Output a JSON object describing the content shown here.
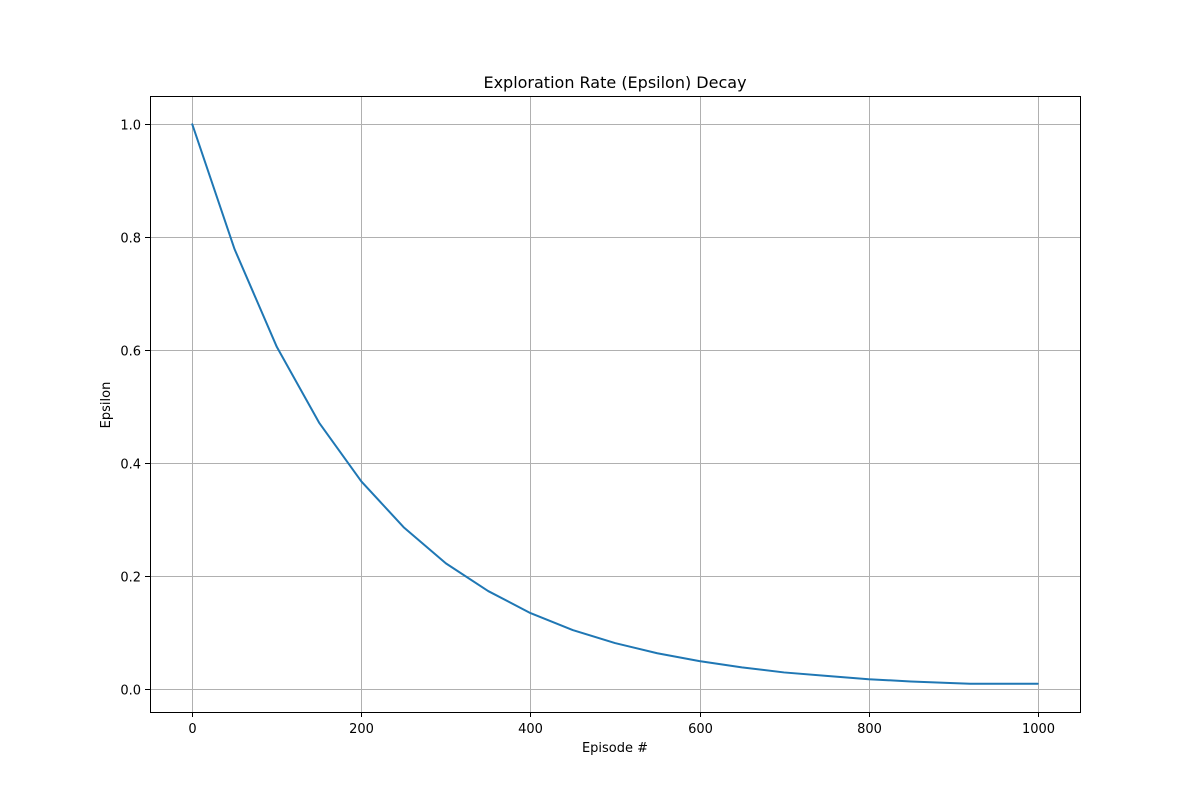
{
  "chart_data": {
    "type": "line",
    "title": "Exploration Rate (Epsilon) Decay",
    "xlabel": "Episode #",
    "ylabel": "Epsilon",
    "xlim": [
      -50,
      1050
    ],
    "ylim": [
      -0.04,
      1.05
    ],
    "xticks": [
      0,
      200,
      400,
      600,
      800,
      1000
    ],
    "xtick_labels": [
      "0",
      "200",
      "400",
      "600",
      "800",
      "1000"
    ],
    "yticks": [
      0.0,
      0.2,
      0.4,
      0.6,
      0.8,
      1.0
    ],
    "ytick_labels": [
      "0.0",
      "0.2",
      "0.4",
      "0.6",
      "0.8",
      "1.0"
    ],
    "grid": true,
    "series": [
      {
        "color": "#1f77b4",
        "x": [
          0,
          50,
          100,
          150,
          200,
          250,
          300,
          350,
          400,
          450,
          500,
          550,
          600,
          650,
          700,
          750,
          800,
          850,
          900,
          920,
          950,
          1000
        ],
        "y": [
          1.0,
          0.779,
          0.606,
          0.472,
          0.368,
          0.287,
          0.223,
          0.174,
          0.135,
          0.105,
          0.082,
          0.064,
          0.05,
          0.039,
          0.03,
          0.024,
          0.018,
          0.014,
          0.011,
          0.01,
          0.01,
          0.01
        ]
      }
    ]
  }
}
